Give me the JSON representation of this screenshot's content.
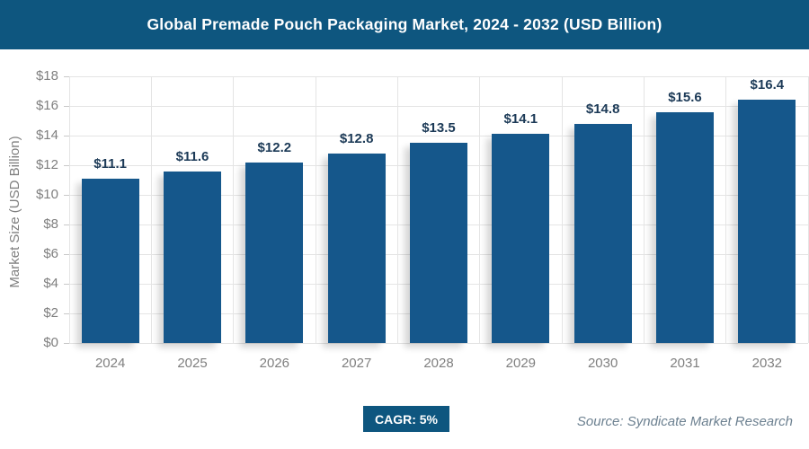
{
  "header": {
    "title": "Global Premade Pouch Packaging Market, 2024 - 2032 (USD Billion)"
  },
  "chart_data": {
    "type": "bar",
    "title": "Global Premade Pouch Packaging Market, 2024 - 2032 (USD Billion)",
    "categories": [
      "2024",
      "2025",
      "2026",
      "2027",
      "2028",
      "2029",
      "2030",
      "2031",
      "2032"
    ],
    "values": [
      11.1,
      11.6,
      12.2,
      12.8,
      13.5,
      14.1,
      14.8,
      15.6,
      16.4
    ],
    "value_labels": [
      "$11.1",
      "$11.6",
      "$12.2",
      "$12.8",
      "$13.5",
      "$14.1",
      "$14.8",
      "$15.6",
      "$16.4"
    ],
    "xlabel": "",
    "ylabel": "Market Size (USD Billion)",
    "ylim": [
      0,
      18
    ],
    "ytick_step": 2,
    "ytick_labels": [
      "$0",
      "$2",
      "$4",
      "$6",
      "$8",
      "$10",
      "$12",
      "$14",
      "$16",
      "$18"
    ],
    "grid": "horizontal and vertical light gray",
    "legend": false
  },
  "footer": {
    "cagr_label": "CAGR: 5%",
    "source": "Source: Syndicate Market Research"
  },
  "colors": {
    "title_bar": "#0E567F",
    "bar": "#15578B",
    "data_label": "#1C3A57",
    "axis_text": "#7F7F7F",
    "gridline": "#E4E4E4",
    "badge": "#0E567F",
    "source_text": "#6C8090"
  }
}
